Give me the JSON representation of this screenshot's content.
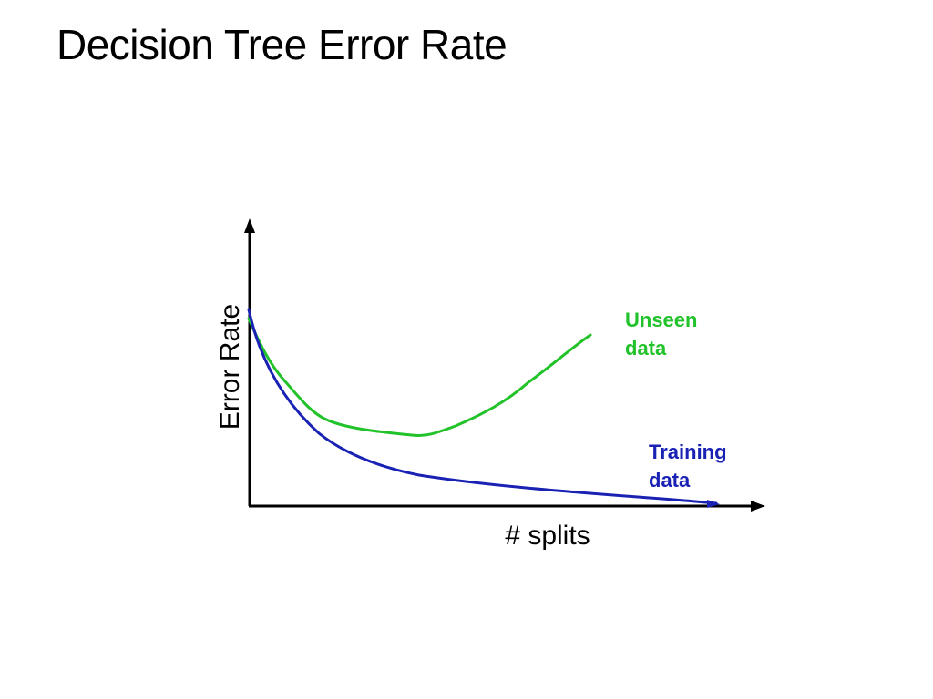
{
  "slide": {
    "title": "Decision Tree Error Rate"
  },
  "figure": {
    "y_axis_label": "Error Rate",
    "x_axis_label": "# splits",
    "axis_color": "#000000",
    "curves": [
      {
        "id": "unseen",
        "label_lines": [
          "Unseen",
          "data"
        ],
        "color": "#22c22a",
        "trend": "decreases to a minimum, then increases"
      },
      {
        "id": "training",
        "label_lines": [
          "Training",
          "data"
        ],
        "color": "#1a22b4",
        "trend": "decreases monotonically"
      }
    ]
  }
}
